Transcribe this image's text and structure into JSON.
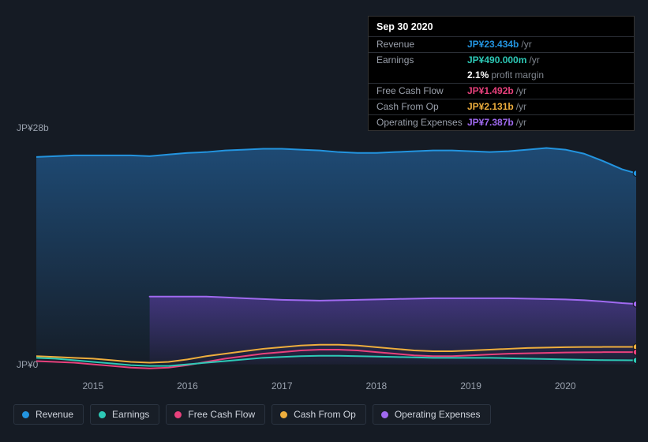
{
  "tooltip": {
    "date": "Sep 30 2020",
    "rows": [
      {
        "label": "Revenue",
        "value": "JP¥23.434b",
        "unit": "/yr",
        "color": "#2394df"
      },
      {
        "label": "Earnings",
        "value": "JP¥490.000m",
        "unit": "/yr",
        "color": "#2dc9b6"
      },
      {
        "label": "",
        "value": "2.1%",
        "unit": "profit margin",
        "color": "#ffffff",
        "noborder": true
      },
      {
        "label": "Free Cash Flow",
        "value": "JP¥1.492b",
        "unit": "/yr",
        "color": "#e8417c"
      },
      {
        "label": "Cash From Op",
        "value": "JP¥2.131b",
        "unit": "/yr",
        "color": "#eeae3d"
      },
      {
        "label": "Operating Expenses",
        "value": "JP¥7.387b",
        "unit": "/yr",
        "color": "#a06af0"
      }
    ]
  },
  "chart": {
    "type": "area",
    "y_top_label": "JP¥28b",
    "y_bottom_label": "JP¥0",
    "y_max": 28,
    "y_min": -1.2,
    "x_start": 2014.4,
    "x_end": 2020.75,
    "x_ticks": [
      2015,
      2016,
      2017,
      2018,
      2019,
      2020
    ],
    "background": "#151b24",
    "gradient_top": "#1a3452",
    "gradient_bottom": "#191e29",
    "series": [
      {
        "name": "Revenue",
        "color": "#2394df",
        "fill": true,
        "fill_from": "#1e4a74",
        "fill_to": "rgba(30,74,116,0.05)",
        "points": [
          [
            2014.4,
            25.4
          ],
          [
            2014.6,
            25.5
          ],
          [
            2014.8,
            25.6
          ],
          [
            2015.0,
            25.6
          ],
          [
            2015.2,
            25.6
          ],
          [
            2015.4,
            25.6
          ],
          [
            2015.6,
            25.5
          ],
          [
            2015.8,
            25.7
          ],
          [
            2016.0,
            25.9
          ],
          [
            2016.2,
            26.0
          ],
          [
            2016.4,
            26.2
          ],
          [
            2016.6,
            26.3
          ],
          [
            2016.8,
            26.4
          ],
          [
            2017.0,
            26.4
          ],
          [
            2017.2,
            26.3
          ],
          [
            2017.4,
            26.2
          ],
          [
            2017.6,
            26.0
          ],
          [
            2017.8,
            25.9
          ],
          [
            2018.0,
            25.9
          ],
          [
            2018.2,
            26.0
          ],
          [
            2018.4,
            26.1
          ],
          [
            2018.6,
            26.2
          ],
          [
            2018.8,
            26.2
          ],
          [
            2019.0,
            26.1
          ],
          [
            2019.2,
            26.0
          ],
          [
            2019.4,
            26.1
          ],
          [
            2019.6,
            26.3
          ],
          [
            2019.8,
            26.5
          ],
          [
            2020.0,
            26.3
          ],
          [
            2020.2,
            25.8
          ],
          [
            2020.4,
            24.9
          ],
          [
            2020.6,
            23.9
          ],
          [
            2020.75,
            23.4
          ]
        ]
      },
      {
        "name": "Operating Expenses",
        "color": "#a06af0",
        "fill": true,
        "fill_from": "rgba(98,60,170,0.55)",
        "fill_to": "rgba(98,60,170,0.08)",
        "start_x": 2015.6,
        "points": [
          [
            2015.6,
            8.3
          ],
          [
            2015.8,
            8.3
          ],
          [
            2016.0,
            8.3
          ],
          [
            2016.2,
            8.3
          ],
          [
            2016.4,
            8.2
          ],
          [
            2016.6,
            8.1
          ],
          [
            2016.8,
            8.0
          ],
          [
            2017.0,
            7.9
          ],
          [
            2017.2,
            7.85
          ],
          [
            2017.4,
            7.8
          ],
          [
            2017.6,
            7.85
          ],
          [
            2017.8,
            7.9
          ],
          [
            2018.0,
            7.95
          ],
          [
            2018.2,
            8.0
          ],
          [
            2018.4,
            8.05
          ],
          [
            2018.6,
            8.1
          ],
          [
            2018.8,
            8.1
          ],
          [
            2019.0,
            8.1
          ],
          [
            2019.2,
            8.1
          ],
          [
            2019.4,
            8.1
          ],
          [
            2019.6,
            8.05
          ],
          [
            2019.8,
            8.0
          ],
          [
            2020.0,
            7.95
          ],
          [
            2020.2,
            7.85
          ],
          [
            2020.4,
            7.7
          ],
          [
            2020.6,
            7.5
          ],
          [
            2020.75,
            7.39
          ]
        ]
      },
      {
        "name": "Cash From Op",
        "color": "#eeae3d",
        "fill": false,
        "points": [
          [
            2014.4,
            1.0
          ],
          [
            2014.6,
            0.9
          ],
          [
            2014.8,
            0.8
          ],
          [
            2015.0,
            0.7
          ],
          [
            2015.2,
            0.5
          ],
          [
            2015.4,
            0.3
          ],
          [
            2015.6,
            0.2
          ],
          [
            2015.8,
            0.3
          ],
          [
            2016.0,
            0.6
          ],
          [
            2016.2,
            1.0
          ],
          [
            2016.4,
            1.3
          ],
          [
            2016.6,
            1.6
          ],
          [
            2016.8,
            1.9
          ],
          [
            2017.0,
            2.1
          ],
          [
            2017.2,
            2.3
          ],
          [
            2017.4,
            2.4
          ],
          [
            2017.6,
            2.4
          ],
          [
            2017.8,
            2.3
          ],
          [
            2018.0,
            2.1
          ],
          [
            2018.2,
            1.9
          ],
          [
            2018.4,
            1.7
          ],
          [
            2018.6,
            1.6
          ],
          [
            2018.8,
            1.6
          ],
          [
            2019.0,
            1.7
          ],
          [
            2019.2,
            1.8
          ],
          [
            2019.4,
            1.9
          ],
          [
            2019.6,
            2.0
          ],
          [
            2019.8,
            2.05
          ],
          [
            2020.0,
            2.1
          ],
          [
            2020.2,
            2.12
          ],
          [
            2020.4,
            2.13
          ],
          [
            2020.6,
            2.13
          ],
          [
            2020.75,
            2.13
          ]
        ]
      },
      {
        "name": "Free Cash Flow",
        "color": "#e8417c",
        "fill": false,
        "points": [
          [
            2014.4,
            0.4
          ],
          [
            2014.6,
            0.3
          ],
          [
            2014.8,
            0.2
          ],
          [
            2015.0,
            0.0
          ],
          [
            2015.2,
            -0.2
          ],
          [
            2015.4,
            -0.4
          ],
          [
            2015.6,
            -0.5
          ],
          [
            2015.8,
            -0.4
          ],
          [
            2016.0,
            -0.1
          ],
          [
            2016.2,
            0.3
          ],
          [
            2016.4,
            0.7
          ],
          [
            2016.6,
            1.0
          ],
          [
            2016.8,
            1.3
          ],
          [
            2017.0,
            1.5
          ],
          [
            2017.2,
            1.7
          ],
          [
            2017.4,
            1.8
          ],
          [
            2017.6,
            1.8
          ],
          [
            2017.8,
            1.7
          ],
          [
            2018.0,
            1.5
          ],
          [
            2018.2,
            1.3
          ],
          [
            2018.4,
            1.1
          ],
          [
            2018.6,
            1.0
          ],
          [
            2018.8,
            1.0
          ],
          [
            2019.0,
            1.1
          ],
          [
            2019.2,
            1.2
          ],
          [
            2019.4,
            1.3
          ],
          [
            2019.6,
            1.35
          ],
          [
            2019.8,
            1.4
          ],
          [
            2020.0,
            1.45
          ],
          [
            2020.2,
            1.47
          ],
          [
            2020.4,
            1.49
          ],
          [
            2020.6,
            1.49
          ],
          [
            2020.75,
            1.49
          ]
        ]
      },
      {
        "name": "Earnings",
        "color": "#2dc9b6",
        "fill": false,
        "points": [
          [
            2014.4,
            0.8
          ],
          [
            2014.6,
            0.7
          ],
          [
            2014.8,
            0.5
          ],
          [
            2015.0,
            0.3
          ],
          [
            2015.2,
            0.1
          ],
          [
            2015.4,
            -0.1
          ],
          [
            2015.6,
            -0.2
          ],
          [
            2015.8,
            -0.2
          ],
          [
            2016.0,
            0.0
          ],
          [
            2016.2,
            0.2
          ],
          [
            2016.4,
            0.4
          ],
          [
            2016.6,
            0.6
          ],
          [
            2016.8,
            0.8
          ],
          [
            2017.0,
            0.9
          ],
          [
            2017.2,
            1.0
          ],
          [
            2017.4,
            1.05
          ],
          [
            2017.6,
            1.05
          ],
          [
            2017.8,
            1.0
          ],
          [
            2018.0,
            0.95
          ],
          [
            2018.2,
            0.9
          ],
          [
            2018.4,
            0.85
          ],
          [
            2018.6,
            0.8
          ],
          [
            2018.8,
            0.8
          ],
          [
            2019.0,
            0.8
          ],
          [
            2019.2,
            0.8
          ],
          [
            2019.4,
            0.75
          ],
          [
            2019.6,
            0.7
          ],
          [
            2019.8,
            0.65
          ],
          [
            2020.0,
            0.6
          ],
          [
            2020.2,
            0.55
          ],
          [
            2020.4,
            0.52
          ],
          [
            2020.6,
            0.5
          ],
          [
            2020.75,
            0.49
          ]
        ]
      }
    ],
    "end_markers": [
      {
        "color": "#2394df",
        "y": 23.4
      },
      {
        "color": "#a06af0",
        "y": 7.39
      },
      {
        "color": "#eeae3d",
        "y": 2.13
      },
      {
        "color": "#e8417c",
        "y": 1.49
      },
      {
        "color": "#2dc9b6",
        "y": 0.49
      }
    ]
  },
  "legend": [
    {
      "label": "Revenue",
      "color": "#2394df"
    },
    {
      "label": "Earnings",
      "color": "#2dc9b6"
    },
    {
      "label": "Free Cash Flow",
      "color": "#e8417c"
    },
    {
      "label": "Cash From Op",
      "color": "#eeae3d"
    },
    {
      "label": "Operating Expenses",
      "color": "#a06af0"
    }
  ]
}
